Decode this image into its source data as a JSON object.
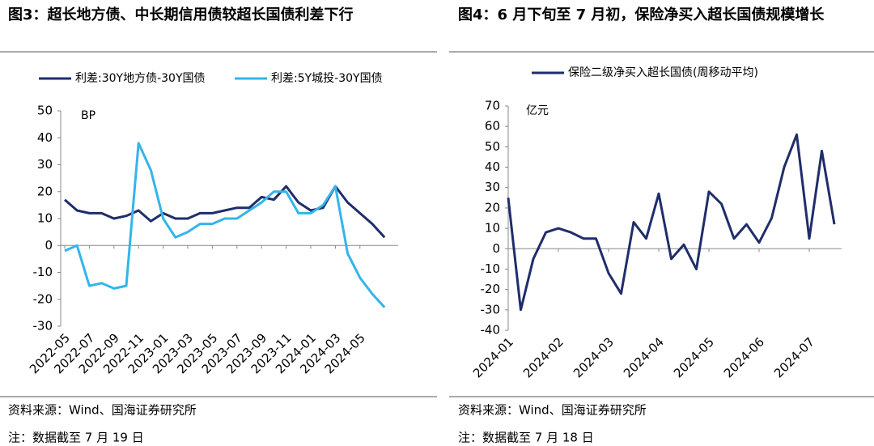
{
  "chart_data": [
    {
      "type": "line",
      "title": "图3：超长地方债、中长期信用债较超长国债利差下行",
      "unit": "BP",
      "source": "资料来源：Wind、国海证券研究所",
      "note": "注：数据截至 7 月 19 日",
      "x": [
        "2022-05",
        "2022-06",
        "2022-07",
        "2022-08",
        "2022-09",
        "2022-10",
        "2022-11",
        "2022-12",
        "2023-01",
        "2023-02",
        "2023-03",
        "2023-04",
        "2023-05",
        "2023-06",
        "2023-07",
        "2023-08",
        "2023-09",
        "2023-10",
        "2023-11",
        "2023-12",
        "2024-01",
        "2024-02",
        "2024-03",
        "2024-04",
        "2024-05",
        "2024-06",
        "2024-07"
      ],
      "xticks": [
        "2022-05",
        "2022-07",
        "2022-09",
        "2022-11",
        "2023-01",
        "2023-03",
        "2023-05",
        "2023-07",
        "2023-09",
        "2023-11",
        "2024-01",
        "2024-03",
        "2024-05"
      ],
      "series": [
        {
          "name": "利差:30Y地方债-30Y国债",
          "color": "#1f2d6b",
          "values": [
            17,
            13,
            12,
            12,
            10,
            11,
            13,
            9,
            12,
            10,
            10,
            12,
            12,
            13,
            14,
            14,
            18,
            17,
            22,
            16,
            13,
            14,
            22,
            16,
            12,
            8,
            3
          ]
        },
        {
          "name": "利差:5Y城投-30Y国债",
          "color": "#33b5ea",
          "values": [
            -2,
            0,
            -15,
            -14,
            -16,
            -15,
            38,
            28,
            10,
            3,
            5,
            8,
            8,
            10,
            10,
            13,
            16,
            20,
            20,
            12,
            12,
            15,
            22,
            -3,
            -12,
            -18,
            -23
          ]
        }
      ],
      "ylim": [
        -30,
        50
      ],
      "yticks": [
        -30,
        -20,
        -10,
        0,
        10,
        20,
        30,
        40,
        50
      ]
    },
    {
      "type": "line",
      "title": "图4：6 月下旬至 7 月初，保险净买入超长国债规模增长",
      "unit": "亿元",
      "source": "资料来源：Wind、国海证券研究所",
      "note": "注：数据截至 7 月 18 日",
      "x": [
        "2024-01",
        "2024-01",
        "2024-01",
        "2024-01",
        "2024-02",
        "2024-02",
        "2024-02",
        "2024-02",
        "2024-03",
        "2024-03",
        "2024-03",
        "2024-03",
        "2024-04",
        "2024-04",
        "2024-04",
        "2024-04",
        "2024-05",
        "2024-05",
        "2024-05",
        "2024-05",
        "2024-06",
        "2024-06",
        "2024-06",
        "2024-06",
        "2024-07",
        "2024-07",
        "2024-07"
      ],
      "xticks": [
        "2024-01",
        "2024-02",
        "2024-03",
        "2024-04",
        "2024-05",
        "2024-06",
        "2024-07"
      ],
      "series": [
        {
          "name": "保险二级净买入超长国债(周移动平均)",
          "color": "#1f2d6b",
          "values": [
            25,
            -30,
            -5,
            8,
            10,
            8,
            5,
            5,
            -12,
            -22,
            13,
            5,
            27,
            -5,
            2,
            -10,
            28,
            22,
            5,
            12,
            3,
            15,
            40,
            56,
            5,
            48,
            12
          ]
        }
      ],
      "ylim": [
        -40,
        70
      ],
      "yticks": [
        -40,
        -30,
        -20,
        -10,
        0,
        10,
        20,
        30,
        40,
        50,
        60,
        70
      ]
    }
  ]
}
